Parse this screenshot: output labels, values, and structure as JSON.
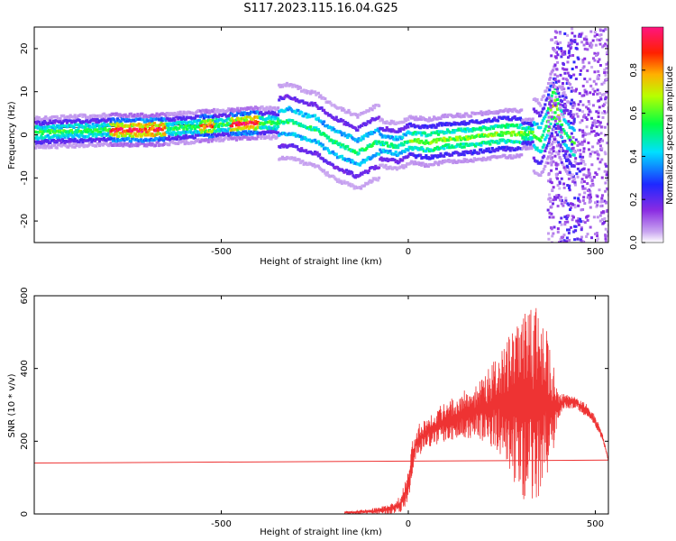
{
  "title": "S117.2023.115.16.04.G25",
  "chart_data": [
    {
      "type": "heatmap",
      "xlabel": "Height of straight line (km)",
      "ylabel": "Frequency (Hz)",
      "xlim": [
        -1000,
        535
      ],
      "ylim": [
        -25,
        25
      ],
      "xticks": [
        -500,
        0,
        500
      ],
      "yticks": [
        -20,
        -10,
        0,
        10,
        20
      ],
      "colorbar": {
        "label": "Normalized spectral amplitude",
        "range": [
          0,
          1
        ],
        "ticks": [
          0.0,
          0.2,
          0.4,
          0.6,
          0.8
        ],
        "colors": [
          "#ffffff",
          "#c9a6f0",
          "#8a2be2",
          "#1e28ff",
          "#00e0ff",
          "#00ff44",
          "#b8ff00",
          "#ffb000",
          "#ff2000",
          "#ff1480"
        ]
      },
      "ridge": {
        "x": [
          -1000,
          -900,
          -800,
          -700,
          -600,
          -500,
          -420,
          -350,
          -320,
          -280,
          -250,
          -220,
          -190,
          -160,
          -140,
          -120,
          -90,
          -60,
          -30,
          0,
          50,
          100,
          150,
          200,
          250,
          300,
          330,
          350,
          370,
          380,
          390,
          400,
          420,
          440
        ],
        "y": [
          0.2,
          0.6,
          0.9,
          0.8,
          1.4,
          2.0,
          2.5,
          2.5,
          3.0,
          1.5,
          1.0,
          -1.0,
          -2.5,
          -3.5,
          -4.5,
          -3.5,
          -2.0,
          -2.5,
          -3.0,
          -1.5,
          -2.0,
          -1.2,
          -1.0,
          -0.5,
          0.0,
          0.0,
          0.0,
          -1.5,
          3.0,
          6.0,
          7.5,
          3.0,
          -0.5,
          -2.0
        ]
      }
    },
    {
      "type": "line",
      "xlabel": "Height of straight line (km)",
      "ylabel": "SNR (10 * v/v)",
      "xlim": [
        -1000,
        535
      ],
      "ylim": [
        0,
        600
      ],
      "xticks": [
        -500,
        0,
        500
      ],
      "yticks": [
        0,
        200,
        400,
        600
      ],
      "color": "#ee3333",
      "reference_line": {
        "x": [
          -1000,
          535
        ],
        "y": [
          140,
          148
        ]
      },
      "envelope": {
        "x": [
          -170,
          -100,
          -50,
          -20,
          0,
          10,
          20,
          30,
          50,
          100,
          150,
          200,
          250,
          280,
          300,
          320,
          340,
          360,
          380,
          400,
          420,
          450,
          480,
          500,
          520,
          535
        ],
        "upper": [
          8,
          15,
          25,
          50,
          120,
          200,
          230,
          250,
          270,
          310,
          340,
          380,
          450,
          520,
          540,
          560,
          580,
          560,
          470,
          330,
          330,
          320,
          300,
          270,
          220,
          150
        ],
        "lower": [
          0,
          0,
          0,
          5,
          30,
          100,
          150,
          160,
          180,
          200,
          210,
          200,
          160,
          80,
          50,
          20,
          40,
          60,
          120,
          260,
          290,
          290,
          260,
          240,
          200,
          145
        ]
      }
    }
  ]
}
